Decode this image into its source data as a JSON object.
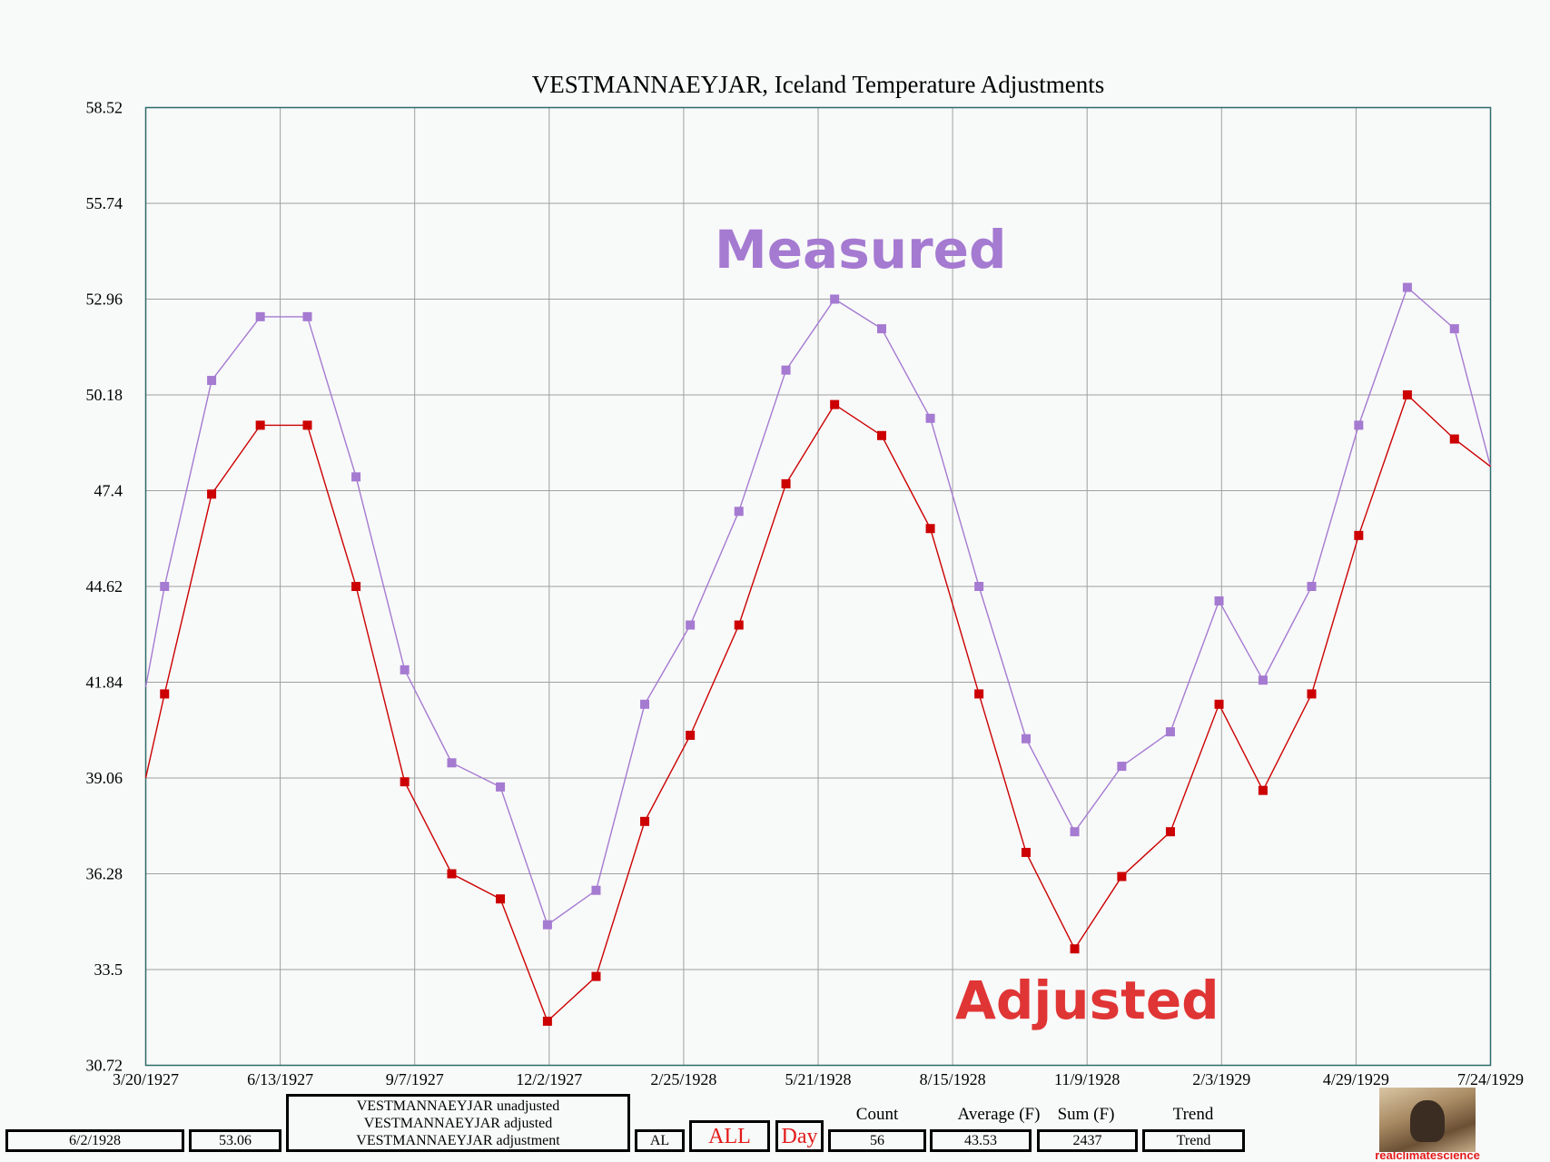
{
  "colors": {
    "measured": "#a57ad1",
    "adjusted": "#cc0000",
    "red_text": "#e31b1b",
    "frame": "#2e6b6b",
    "grid": "#a0a0a0"
  },
  "chart_data": {
    "type": "line",
    "title": "VESTMANNAEYJAR, Iceland Temperature Adjustments",
    "xlabel": "",
    "ylabel": "",
    "ylim": [
      30.72,
      58.52
    ],
    "y_ticks": [
      "58.52",
      "55.74",
      "52.96",
      "50.18",
      "47.4",
      "44.62",
      "41.84",
      "39.06",
      "36.28",
      "33.5",
      "30.72"
    ],
    "x_tick_labels": [
      "3/20/1927",
      "6/13/1927",
      "9/7/1927",
      "12/2/1927",
      "2/25/1928",
      "5/21/1928",
      "8/15/1928",
      "11/9/1928",
      "2/3/1929",
      "4/29/1929",
      "7/24/1929"
    ],
    "x_start": "1927-03-20",
    "x_end": "1929-07-24",
    "annotations": [
      {
        "text": "Measured",
        "series": "measured"
      },
      {
        "text": "Adjusted",
        "series": "adjusted"
      }
    ],
    "series": [
      {
        "key": "measured",
        "x": [
          "1927-03-20",
          "1927-04-01",
          "1927-05-01",
          "1927-06-01",
          "1927-07-01",
          "1927-08-01",
          "1927-09-01",
          "1927-10-01",
          "1927-11-01",
          "1927-12-01",
          "1928-01-01",
          "1928-02-01",
          "1928-03-01",
          "1928-04-01",
          "1928-05-01",
          "1928-06-01",
          "1928-07-01",
          "1928-08-01",
          "1928-09-01",
          "1928-10-01",
          "1928-11-01",
          "1928-12-01",
          "1929-01-01",
          "1929-02-01",
          "1929-03-01",
          "1929-04-01",
          "1929-05-01",
          "1929-06-01",
          "1929-07-01",
          "1929-07-24"
        ],
        "values": [
          41.7,
          44.62,
          50.6,
          52.45,
          52.45,
          47.8,
          42.2,
          39.5,
          38.8,
          34.8,
          35.8,
          41.2,
          43.5,
          46.8,
          50.9,
          52.96,
          52.1,
          49.5,
          44.62,
          40.2,
          37.5,
          39.4,
          40.4,
          44.2,
          41.9,
          44.62,
          49.3,
          53.3,
          52.1,
          48.1
        ]
      },
      {
        "key": "adjusted",
        "x": [
          "1927-03-20",
          "1927-04-01",
          "1927-05-01",
          "1927-06-01",
          "1927-07-01",
          "1927-08-01",
          "1927-09-01",
          "1927-10-01",
          "1927-11-01",
          "1927-12-01",
          "1928-01-01",
          "1928-02-01",
          "1928-03-01",
          "1928-04-01",
          "1928-05-01",
          "1928-06-01",
          "1928-07-01",
          "1928-08-01",
          "1928-09-01",
          "1928-10-01",
          "1928-11-01",
          "1928-12-01",
          "1929-01-01",
          "1929-02-01",
          "1929-03-01",
          "1929-04-01",
          "1929-05-01",
          "1929-06-01",
          "1929-07-01",
          "1929-07-24"
        ],
        "values": [
          39.06,
          41.5,
          47.3,
          49.3,
          49.3,
          44.62,
          38.95,
          36.28,
          35.55,
          32.0,
          33.3,
          37.8,
          40.3,
          43.5,
          47.6,
          49.9,
          49.0,
          46.3,
          41.5,
          36.9,
          34.1,
          36.2,
          37.5,
          41.2,
          38.7,
          41.5,
          46.1,
          50.18,
          48.9,
          48.1
        ]
      }
    ]
  },
  "footer": {
    "date_value": "6/2/1928",
    "temp_value": "53.06",
    "legend_lines": [
      "VESTMANNAEYJAR unadjusted",
      "VESTMANNAEYJAR adjusted",
      "VESTMANNAEYJAR adjustment"
    ],
    "al_button": "AL",
    "all_button": "ALL",
    "day_button": "Day",
    "count_header": "Count",
    "count_value": "56",
    "average_header": "Average (F)",
    "average_value": "43.53",
    "sum_header": "Sum (F)",
    "sum_value": "2437",
    "trend_header": "Trend",
    "trend_value": "Trend"
  },
  "logo": {
    "text": "realclimatescience"
  }
}
